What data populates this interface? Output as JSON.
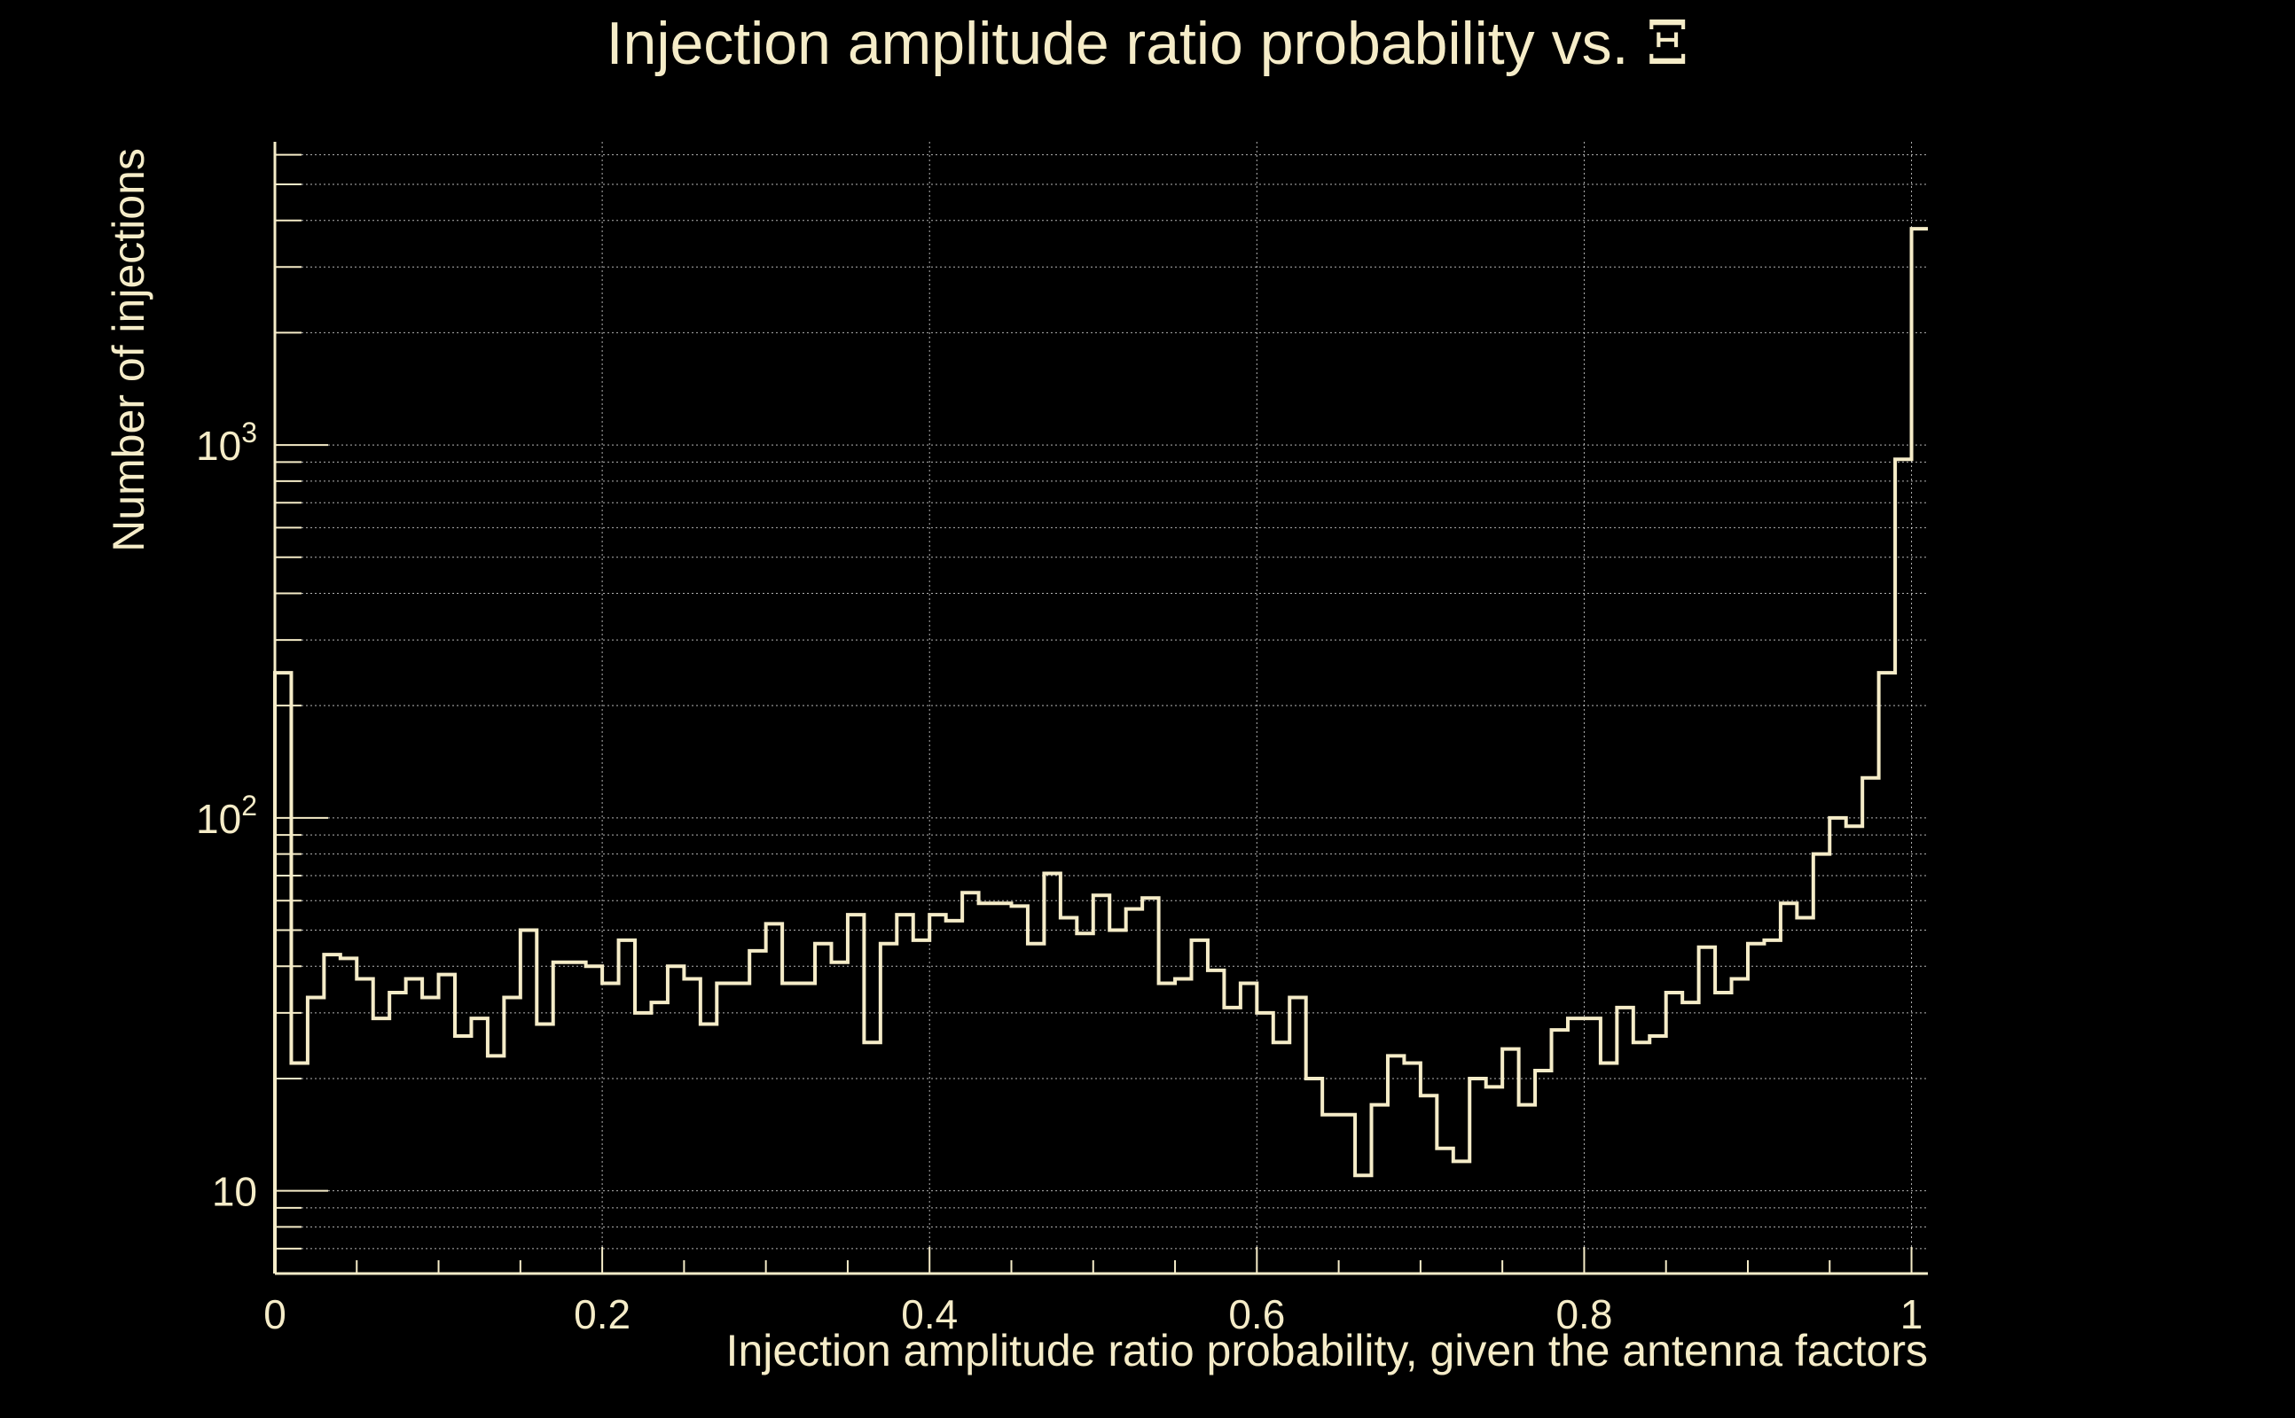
{
  "colors": {
    "background": "#000000",
    "foreground": "#f5ecc8",
    "grid": "#ffffff"
  },
  "chart_data": {
    "type": "histogram",
    "title": "Injection amplitude ratio probability vs.",
    "title_symbol": "Ξ",
    "xlabel": "Injection amplitude ratio probability, given the antenna factors",
    "ylabel": "Number of injections",
    "xlim": [
      0,
      1.01
    ],
    "ylim": [
      6,
      6500
    ],
    "yscale": "log",
    "grid": true,
    "x_ticks": [
      {
        "value": 0,
        "label": "0"
      },
      {
        "value": 0.2,
        "label": "0.2"
      },
      {
        "value": 0.4,
        "label": "0.4"
      },
      {
        "value": 0.6,
        "label": "0.6"
      },
      {
        "value": 0.8,
        "label": "0.8"
      },
      {
        "value": 1,
        "label": "1"
      }
    ],
    "y_ticks": [
      {
        "value": 10,
        "base": "10",
        "exp": ""
      },
      {
        "value": 100,
        "base": "10",
        "exp": "2"
      },
      {
        "value": 1000,
        "base": "10",
        "exp": "3"
      }
    ],
    "bin_width": 0.01,
    "bin_start": 0,
    "counts": [
      245,
      22,
      33,
      43,
      42,
      37,
      29,
      34,
      37,
      33,
      38,
      26,
      29,
      23,
      33,
      50,
      28,
      41,
      41,
      40,
      36,
      47,
      30,
      32,
      40,
      37,
      28,
      36,
      36,
      44,
      52,
      36,
      36,
      46,
      41,
      55,
      25,
      46,
      55,
      47,
      55,
      53,
      63,
      59,
      59,
      58,
      46,
      71,
      54,
      49,
      62,
      50,
      57,
      61,
      36,
      37,
      47,
      39,
      31,
      36,
      30,
      25,
      33,
      20,
      16,
      16,
      11,
      17,
      23,
      22,
      18,
      13,
      12,
      20,
      19,
      24,
      17,
      21,
      27,
      29,
      29,
      22,
      31,
      25,
      26,
      34,
      32,
      45,
      34,
      37,
      46,
      47,
      59,
      54,
      80,
      100,
      95,
      128,
      245,
      915,
      3800
    ]
  }
}
